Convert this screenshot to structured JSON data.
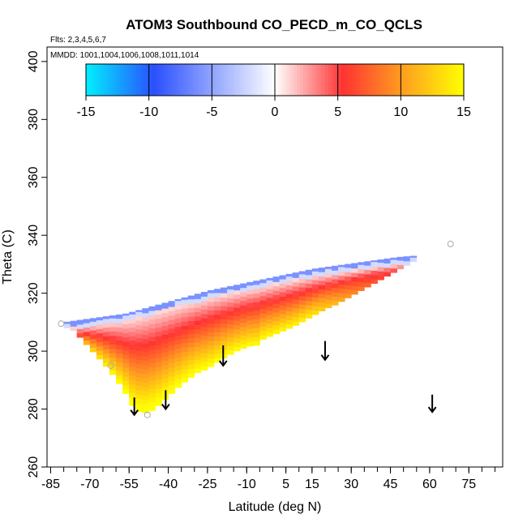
{
  "chart_data": {
    "type": "heatmap",
    "title": "ATOM3 Southbound CO_PECD_m_CO_QCLS",
    "subtitle_flights": "Flts: 2,3,4,5,6,7",
    "subtitle_dates": "MMDD: 1001,1004,1006,1008,1011,1014",
    "xlabel": "Latitude (deg N)",
    "ylabel": "Theta (C)",
    "xlim": [
      -85,
      85
    ],
    "ylim": [
      260,
      405
    ],
    "x_tick_labels": [
      "-85",
      "-70",
      "-55",
      "-40",
      "-25",
      "-10",
      "5",
      "15",
      "30",
      "45",
      "60",
      "75"
    ],
    "x_tick_values": [
      -85,
      -70,
      -55,
      -40,
      -25,
      -10,
      5,
      15,
      30,
      45,
      60,
      75
    ],
    "y_tick_labels": [
      "260",
      "280",
      "300",
      "320",
      "340",
      "360",
      "380",
      "400"
    ],
    "y_tick_values": [
      260,
      280,
      300,
      320,
      340,
      360,
      380,
      400
    ],
    "colorbar": {
      "min": -15,
      "max": 15,
      "tick_labels": [
        "-15",
        "-10",
        "-5",
        "0",
        "5",
        "10",
        "15"
      ],
      "tick_values": [
        -15,
        -10,
        -5,
        0,
        5,
        10,
        15
      ],
      "colors": [
        "#00f0ff",
        "#2a50ff",
        "#ffffff",
        "#ff3333",
        "#ffa020",
        "#ffff00"
      ]
    },
    "field": {
      "description_lat_range": [
        -80,
        55
      ],
      "lower_boundary": [
        [
          -80,
          308.5
        ],
        [
          -76,
          307
        ],
        [
          -72,
          303
        ],
        [
          -68,
          299
        ],
        [
          -64,
          295
        ],
        [
          -60,
          290.5
        ],
        [
          -56,
          285
        ],
        [
          -53,
          280
        ],
        [
          -50,
          278.5
        ],
        [
          -47,
          279
        ],
        [
          -44,
          281
        ],
        [
          -41,
          283.5
        ],
        [
          -38,
          286
        ],
        [
          -35,
          288.5
        ],
        [
          -32,
          290.5
        ],
        [
          -29,
          292.5
        ],
        [
          -26,
          293.5
        ],
        [
          -23,
          295
        ],
        [
          -20,
          297
        ],
        [
          -17,
          298.5
        ],
        [
          -14,
          300
        ],
        [
          -11,
          301
        ],
        [
          -8,
          302
        ],
        [
          -6,
          302
        ],
        [
          -4,
          304
        ],
        [
          0,
          305.5
        ],
        [
          4,
          307
        ],
        [
          8,
          308.5
        ],
        [
          12,
          310.5
        ],
        [
          16,
          312.5
        ],
        [
          20,
          314.5
        ],
        [
          24,
          316
        ],
        [
          28,
          318
        ],
        [
          32,
          320
        ],
        [
          36,
          322
        ],
        [
          40,
          324
        ],
        [
          44,
          326
        ],
        [
          48,
          328
        ],
        [
          52,
          330
        ],
        [
          55,
          331.5
        ]
      ],
      "upper_boundary": [
        [
          -80,
          310
        ],
        [
          -72,
          311
        ],
        [
          -64,
          312
        ],
        [
          -56,
          313
        ],
        [
          -48,
          315
        ],
        [
          -40,
          317
        ],
        [
          -32,
          319
        ],
        [
          -24,
          321
        ],
        [
          -16,
          322.5
        ],
        [
          -8,
          324
        ],
        [
          0,
          325.5
        ],
        [
          8,
          327
        ],
        [
          16,
          328.5
        ],
        [
          24,
          329.5
        ],
        [
          32,
          330.5
        ],
        [
          40,
          331.5
        ],
        [
          48,
          332.5
        ],
        [
          55,
          333
        ]
      ]
    },
    "profile_arrows_lat": [
      -53,
      -41,
      -19,
      20,
      61
    ],
    "profile_arrows_theta": [
      [
        284,
        278
      ],
      [
        286.5,
        280
      ],
      [
        302,
        295
      ],
      [
        303.5,
        297
      ],
      [
        285,
        279
      ]
    ],
    "circle_markers": [
      [
        -81,
        309.5
      ],
      [
        -62,
        295
      ],
      [
        -48,
        278
      ],
      [
        68,
        337
      ]
    ]
  }
}
